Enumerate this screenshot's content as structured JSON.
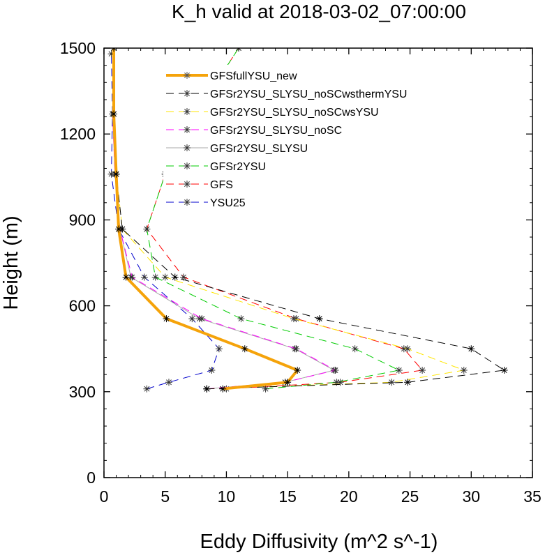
{
  "chart_data": {
    "type": "line",
    "title": "K_h valid at 2018-03-02_07:00:00",
    "xlabel": "Eddy Diffusivity (m^2 s^-1)",
    "ylabel": "Height (m)",
    "xlim": [
      0,
      35
    ],
    "ylim": [
      0,
      1500
    ],
    "xticks": [
      0,
      5,
      10,
      15,
      20,
      25,
      30,
      35
    ],
    "yticks": [
      0,
      300,
      600,
      900,
      1200,
      1500
    ],
    "grid": false,
    "legend_position": "top-right",
    "series": [
      {
        "name": "GFSfullYSU_new",
        "color": "#f5a30a",
        "dash": "solid",
        "width": 4,
        "marker": false,
        "points": [
          [
            9.7,
            310
          ],
          [
            15.0,
            333
          ],
          [
            15.8,
            375
          ],
          [
            11.5,
            450
          ],
          [
            5.1,
            555
          ],
          [
            1.8,
            700
          ],
          [
            1.2,
            868
          ],
          [
            1.0,
            1060
          ],
          [
            0.8,
            1270
          ],
          [
            0.8,
            1500
          ]
        ]
      },
      {
        "name": "GFSr2YSU_SLYSU_noSCwsthermYSU",
        "color": "#000000",
        "dash": "long",
        "width": 1,
        "marker": true,
        "points": [
          [
            8.4,
            310
          ],
          [
            24.8,
            333
          ],
          [
            32.7,
            375
          ],
          [
            30.0,
            450
          ],
          [
            17.6,
            555
          ],
          [
            5.8,
            700
          ],
          [
            1.5,
            868
          ],
          [
            1.0,
            1060
          ],
          [
            0.8,
            1270
          ]
        ]
      },
      {
        "name": "GFSr2YSU_SLYSU_noSCwsYSU",
        "color": "#ffe600",
        "dash": "long",
        "width": 1,
        "marker": true,
        "points": [
          [
            8.4,
            310
          ],
          [
            23.5,
            333
          ],
          [
            29.4,
            375
          ],
          [
            24.8,
            450
          ],
          [
            15.5,
            555
          ],
          [
            5.0,
            700
          ],
          [
            1.5,
            868
          ],
          [
            1.0,
            1060
          ],
          [
            0.8,
            1270
          ]
        ]
      },
      {
        "name": "GFSr2YSU_SLYSU_noSC",
        "color": "#ff00ff",
        "dash": "long",
        "width": 1,
        "marker": true,
        "points": [
          [
            8.4,
            310
          ],
          [
            14.8,
            333
          ],
          [
            18.9,
            375
          ],
          [
            15.7,
            450
          ],
          [
            8.0,
            555
          ],
          [
            2.3,
            700
          ],
          [
            1.3,
            868
          ],
          [
            0.9,
            1060
          ],
          [
            0.7,
            1270
          ]
        ]
      },
      {
        "name": "GFSr2YSU_SLYSU",
        "color": "#aaaaaa",
        "dash": "solid",
        "width": 1,
        "marker": true,
        "points": [
          [
            8.4,
            310
          ],
          [
            14.8,
            333
          ],
          [
            18.8,
            375
          ],
          [
            15.6,
            450
          ],
          [
            7.8,
            555
          ],
          [
            2.2,
            700
          ],
          [
            1.3,
            868
          ],
          [
            0.9,
            1060
          ],
          [
            0.7,
            1270
          ]
        ]
      },
      {
        "name": "GFSr2YSU",
        "color": "#00cc00",
        "dash": "long",
        "width": 1,
        "marker": true,
        "points": [
          [
            13.2,
            310
          ],
          [
            19.0,
            333
          ],
          [
            24.1,
            375
          ],
          [
            20.5,
            450
          ],
          [
            11.2,
            555
          ],
          [
            4.2,
            700
          ],
          [
            3.5,
            868
          ],
          [
            5.0,
            1060
          ],
          [
            7.5,
            1270
          ],
          [
            11.0,
            1500
          ]
        ]
      },
      {
        "name": "GFS",
        "color": "#ff0000",
        "dash": "long",
        "width": 1,
        "marker": true,
        "points": [
          [
            10.0,
            310
          ],
          [
            19.3,
            333
          ],
          [
            26.0,
            375
          ],
          [
            24.5,
            450
          ],
          [
            15.7,
            555
          ],
          [
            6.5,
            700
          ],
          [
            3.5,
            868
          ],
          [
            5.0,
            1060
          ],
          [
            7.5,
            1270
          ],
          [
            11.0,
            1500
          ]
        ]
      },
      {
        "name": "YSU25",
        "color": "#0000cc",
        "dash": "long",
        "width": 1,
        "marker": true,
        "points": [
          [
            3.5,
            310
          ],
          [
            5.3,
            333
          ],
          [
            8.8,
            375
          ],
          [
            9.4,
            450
          ],
          [
            7.2,
            555
          ],
          [
            3.3,
            700
          ],
          [
            1.2,
            868
          ],
          [
            0.6,
            1060
          ],
          [
            0.7,
            1270
          ],
          [
            0.6,
            1480
          ]
        ]
      }
    ]
  }
}
